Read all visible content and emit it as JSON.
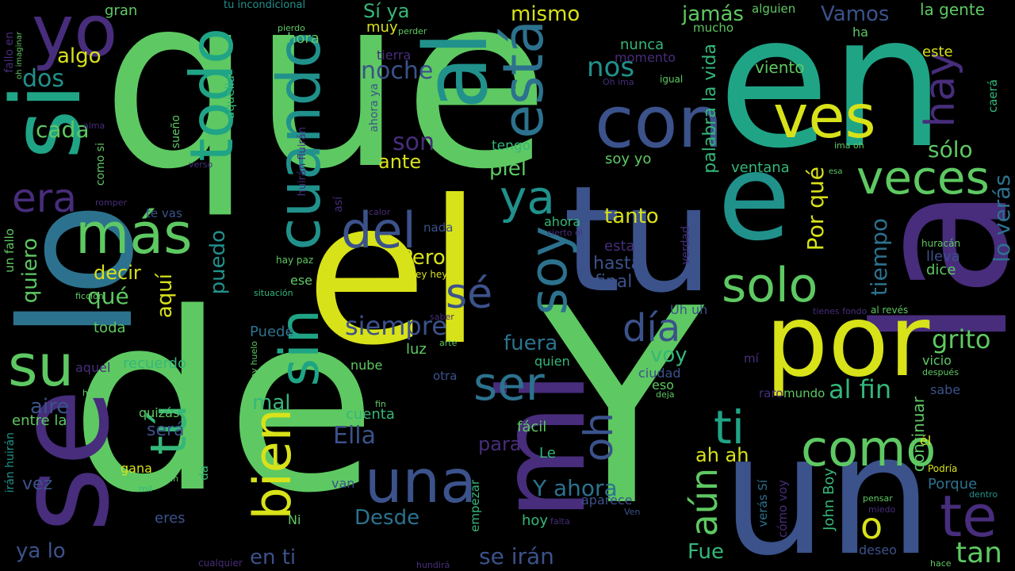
{
  "palette": {
    "lime": "#5ec962",
    "yellow": "#d8e219",
    "teal": "#21918c",
    "blue": "#3b528b",
    "purple": "#472d7b",
    "deep": "#440154",
    "green": "#35b779",
    "cyan": "#2c728e",
    "pale": "#b5de2b"
  },
  "words": [
    "que",
    "en",
    "la",
    "de",
    "Y",
    "el",
    "lo",
    "tu",
    "se",
    "un",
    "si",
    "por",
    "mi",
    "me",
    "e",
    "con",
    "ves",
    "yo",
    "todo",
    "cuando",
    "al",
    "está",
    "veces",
    "solo",
    "más",
    "del",
    "soy",
    "sin",
    "su",
    "una",
    "bien",
    "tú",
    "como",
    "ya",
    "ser",
    "día",
    "hay",
    "sé",
    "te",
    "era",
    "aún",
    "oh",
    "ti",
    "siempre",
    "o",
    "al fin",
    "son",
    "noche",
    "nos",
    "grito",
    "sólo",
    "tiempo",
    "palabra la vida",
    "lo verás",
    "tan",
    "Ella",
    "Por qué",
    "hasta",
    "final",
    "quiero",
    "puedo",
    "aquí",
    "qué",
    "decir",
    "cada",
    "dos",
    "algo",
    "mismo",
    "Vamos",
    "jamás",
    "la gente",
    "este",
    "viento",
    "nunca",
    "momento",
    "tierra",
    "muy",
    "hora",
    "Sí ya",
    "gran",
    "tu incondicional",
    "fallo en",
    "oh imaginar",
    "pierdo",
    "perder",
    "alma",
    "sueño",
    "aquella",
    "verso",
    "como si",
    "romper",
    "te vas",
    "así",
    "calor",
    "nada",
    "ahora",
    "cierto el",
    "tanto",
    "piel",
    "tengo",
    "ante",
    "soy yo",
    "ventana",
    "esta",
    "lleva",
    "dice",
    "huracán",
    "Pero",
    "Hey hey",
    "va",
    "ese",
    "hay paz",
    "situación",
    "huirán fluirán",
    "ahora ya",
    "Oh ima",
    "igual",
    "ima oh",
    "esa",
    "mucho",
    "alguien",
    "ha",
    "caerá",
    "un fallo",
    "ficción",
    "toda",
    "Puede",
    "saber",
    "arte",
    "luz",
    "fuera",
    "voy",
    "Uh uh",
    "verdad",
    "mí",
    "vicio",
    "después",
    "entonces",
    "tienes fondo",
    "al revés",
    "quien",
    "ciudad",
    "eso",
    "deja",
    "raro",
    "mundo",
    "sabe",
    "continuar",
    "nube",
    "hey huelo",
    "recuerdo",
    "aquel",
    "hacer",
    "aire",
    "mal",
    "cuenta",
    "otra",
    "fin",
    "para",
    "fácil",
    "Le",
    "ah ah",
    "él",
    "será",
    "quizás",
    "entre la",
    "gana",
    "sí caerán",
    "mil",
    "da",
    "vez",
    "eres",
    "irán huirán",
    "ya lo",
    "Ni",
    "en ti",
    "cualquier",
    "Desde",
    "van",
    "empezar",
    "Y ahora",
    "aparece",
    "hoy",
    "falta",
    "Ven",
    "se irán",
    "Fue",
    "John Boy",
    "cómo voy",
    "verás Sí",
    "pensar",
    "miedo",
    "deseo",
    "Porque",
    "Podría",
    "dentro",
    "hace",
    "hundirá"
  ]
}
